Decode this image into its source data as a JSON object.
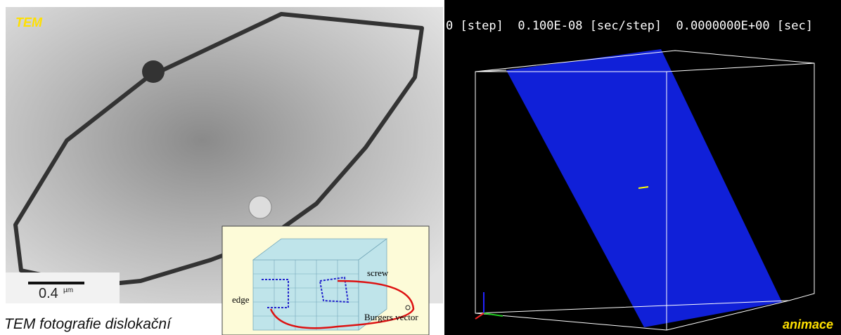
{
  "left_panel": {
    "label": "TEM",
    "scale_value": "0.4",
    "scale_unit": "µm",
    "caption": "TEM fotografie dislokační"
  },
  "inset": {
    "screw": "screw",
    "edge": "edge",
    "burgers": "Burgers vector"
  },
  "right_panel": {
    "header": "0 [step]  0.100E-08 [sec/step]  0.0000000E+00 [sec]",
    "label": "animace"
  }
}
